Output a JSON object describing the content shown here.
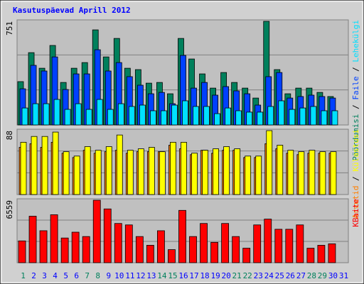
{
  "chart_data": [
    {
      "type": "bar",
      "title": "Kasutuspäevad Aprill 2012",
      "legend_separator": " / ",
      "ylim": [
        0,
        751
      ],
      "yticks": [
        751
      ],
      "grid": true,
      "series": [
        {
          "name": "Pöördumisi",
          "color": "#00805c",
          "values": [
            314,
            524,
            411,
            576,
            308,
            411,
            452,
            689,
            493,
            627,
            411,
            401,
            303,
            308,
            226,
            627,
            478,
            370,
            267,
            380,
            308,
            267,
            195,
            751,
            401,
            226,
            267,
            267,
            236,
            206,
            null
          ]
        },
        {
          "name": "Faile",
          "color": "#0040ff",
          "values": [
            262,
            432,
            391,
            493,
            257,
            370,
            370,
            545,
            391,
            452,
            350,
            288,
            226,
            236,
            154,
            504,
            267,
            308,
            216,
            278,
            247,
            226,
            144,
            350,
            380,
            195,
            206,
            216,
            206,
            195,
            null
          ]
        },
        {
          "name": "Lehekülgi",
          "color": "#00e0ff",
          "values": [
            123,
            154,
            154,
            185,
            113,
            154,
            113,
            185,
            113,
            154,
            134,
            144,
            103,
            103,
            144,
            175,
            134,
            134,
            82,
            123,
            103,
            93,
            93,
            134,
            175,
            113,
            123,
            134,
            103,
            103,
            null
          ]
        }
      ]
    },
    {
      "type": "bar",
      "legend_separator": " / ",
      "ylim": [
        0,
        88
      ],
      "yticks": [
        88
      ],
      "grid": true,
      "series": [
        {
          "name": "Arvutid",
          "color": "#ff8000",
          "values": [
            65,
            70,
            65,
            72,
            57,
            51,
            61,
            57,
            59,
            61,
            57,
            59,
            59,
            59,
            68,
            63,
            55,
            61,
            57,
            61,
            61,
            51,
            51,
            70,
            63,
            57,
            55,
            57,
            57,
            57,
            null
          ]
        },
        {
          "name": "Külastusi",
          "color": "#ffff00",
          "values": [
            72,
            80,
            80,
            86,
            59,
            53,
            66,
            61,
            66,
            82,
            61,
            63,
            65,
            59,
            72,
            72,
            57,
            61,
            63,
            66,
            63,
            53,
            53,
            88,
            68,
            61,
            59,
            61,
            59,
            59,
            null
          ]
        }
      ]
    },
    {
      "type": "bar",
      "ylim": [
        0,
        6559
      ],
      "yticks": [
        6559
      ],
      "grid": true,
      "categories": [
        "1",
        "2",
        "3",
        "4",
        "5",
        "6",
        "7",
        "8",
        "9",
        "10",
        "11",
        "12",
        "13",
        "14",
        "15",
        "16",
        "17",
        "18",
        "19",
        "20",
        "21",
        "22",
        "23",
        "24",
        "25",
        "26",
        "27",
        "28",
        "29",
        "30",
        "31"
      ],
      "category_colors": [
        "#00805c",
        "#0000ff",
        "#0000ff",
        "#0000ff",
        "#0000ff",
        "#0000ff",
        "#00805c",
        "#00805c",
        "#0000ff",
        "#0000ff",
        "#0000ff",
        "#0000ff",
        "#0000ff",
        "#00805c",
        "#00805c",
        "#0000ff",
        "#0000ff",
        "#0000ff",
        "#0000ff",
        "#0000ff",
        "#00805c",
        "#00805c",
        "#0000ff",
        "#0000ff",
        "#0000ff",
        "#0000ff",
        "#0000ff",
        "#00805c",
        "#00805c",
        "#0000ff",
        "#0000ff"
      ],
      "series": [
        {
          "name": "KBaite",
          "color": "#ff0000",
          "values": [
            2289,
            4883,
            3357,
            5036,
            2594,
            3205,
            2747,
            6559,
            5646,
            4120,
            3968,
            2747,
            1831,
            3357,
            1373,
            5494,
            2747,
            4120,
            2136,
            4120,
            2747,
            1526,
            3968,
            4578,
            3510,
            3510,
            3968,
            1526,
            1831,
            1984,
            null
          ]
        }
      ]
    }
  ]
}
